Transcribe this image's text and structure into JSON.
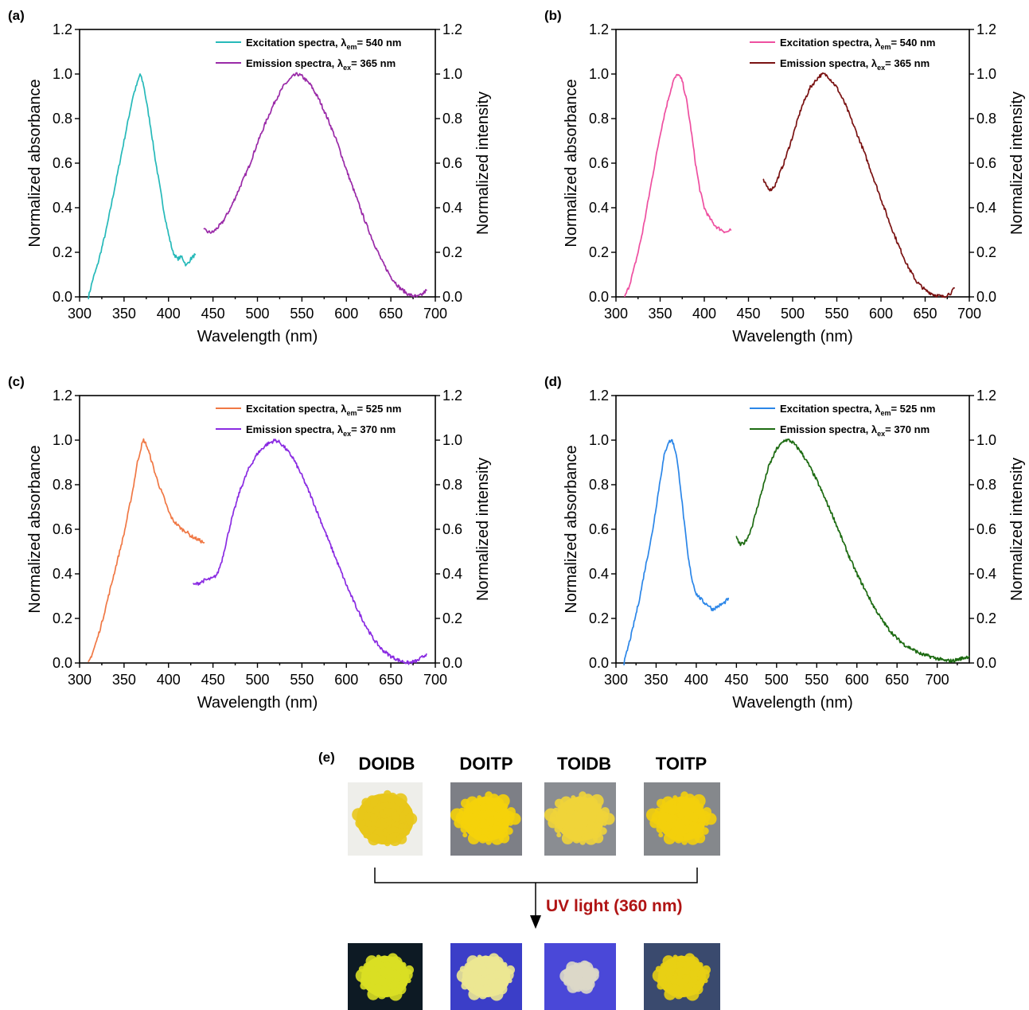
{
  "chart_data": [
    {
      "panel": "(a)",
      "type": "line",
      "xlabel": "Wavelength (nm)",
      "ylabel": "Normalized absorbance",
      "ylabel_right": "Normalized intensity",
      "xlim": [
        300,
        700
      ],
      "ylim": [
        0,
        1.2
      ],
      "xticks": [
        "300",
        "350",
        "400",
        "450",
        "500",
        "550",
        "600",
        "650",
        "700"
      ],
      "yticks": [
        "0.0",
        "0.2",
        "0.4",
        "0.6",
        "0.8",
        "1.0",
        "1.2"
      ],
      "legend_position": "top-right",
      "series": [
        {
          "name": "Excitation spectra, λem= 540 nm",
          "legend_main": "Excitation spectra, λ",
          "legend_sub": "em",
          "legend_tail": "= 540 nm",
          "color": "#26b9b9",
          "x": [
            310,
            315,
            320,
            325,
            330,
            335,
            340,
            345,
            350,
            355,
            360,
            365,
            368,
            372,
            375,
            380,
            385,
            390,
            395,
            400,
            405,
            410,
            415,
            420,
            425,
            430
          ],
          "y": [
            0.0,
            0.08,
            0.14,
            0.22,
            0.3,
            0.4,
            0.5,
            0.6,
            0.7,
            0.8,
            0.9,
            0.96,
            1.0,
            0.95,
            0.88,
            0.76,
            0.62,
            0.5,
            0.38,
            0.28,
            0.2,
            0.17,
            0.18,
            0.14,
            0.17,
            0.19
          ]
        },
        {
          "name": "Emission spectra, λex= 365 nm",
          "legend_main": "Emission spectra, λ",
          "legend_sub": "ex",
          "legend_tail": "= 365 nm",
          "color": "#9a2aa8",
          "x": [
            440,
            445,
            450,
            460,
            470,
            480,
            490,
            500,
            510,
            520,
            530,
            540,
            545,
            550,
            560,
            570,
            580,
            590,
            600,
            610,
            620,
            630,
            640,
            650,
            660,
            670,
            680,
            685,
            690
          ],
          "y": [
            0.3,
            0.29,
            0.29,
            0.33,
            0.4,
            0.49,
            0.58,
            0.69,
            0.79,
            0.88,
            0.95,
            0.99,
            1.0,
            0.99,
            0.95,
            0.88,
            0.79,
            0.69,
            0.57,
            0.46,
            0.35,
            0.25,
            0.16,
            0.09,
            0.04,
            0.01,
            0.0,
            0.01,
            0.03
          ]
        }
      ]
    },
    {
      "panel": "(b)",
      "type": "line",
      "xlabel": "Wavelength (nm)",
      "ylabel": "Normalized absorbance",
      "ylabel_right": "Normalized intensity",
      "xlim": [
        300,
        700
      ],
      "ylim": [
        0,
        1.2
      ],
      "xticks": [
        "300",
        "350",
        "400",
        "450",
        "500",
        "550",
        "600",
        "650",
        "700"
      ],
      "yticks": [
        "0.0",
        "0.2",
        "0.4",
        "0.6",
        "0.8",
        "1.0",
        "1.2"
      ],
      "legend_position": "top-right",
      "series": [
        {
          "name": "Excitation spectra, λem= 540 nm",
          "legend_main": "Excitation spectra, λ",
          "legend_sub": "em",
          "legend_tail": "= 540 nm",
          "color": "#ee4fa0",
          "x": [
            310,
            315,
            320,
            325,
            330,
            335,
            340,
            345,
            350,
            355,
            360,
            365,
            370,
            375,
            380,
            385,
            390,
            395,
            400,
            405,
            410,
            415,
            420,
            425,
            430
          ],
          "y": [
            0.0,
            0.05,
            0.12,
            0.2,
            0.29,
            0.4,
            0.51,
            0.62,
            0.73,
            0.82,
            0.9,
            0.97,
            1.0,
            0.97,
            0.88,
            0.75,
            0.6,
            0.48,
            0.4,
            0.36,
            0.33,
            0.31,
            0.3,
            0.29,
            0.3
          ]
        },
        {
          "name": "Emission spectra, λex= 365 nm",
          "legend_main": "Emission spectra, λ",
          "legend_sub": "ex",
          "legend_tail": "= 365 nm",
          "color": "#7a1212",
          "x": [
            467,
            470,
            475,
            480,
            485,
            490,
            500,
            510,
            520,
            530,
            535,
            540,
            550,
            560,
            570,
            580,
            590,
            600,
            610,
            620,
            630,
            640,
            650,
            660,
            670,
            675,
            680,
            683
          ],
          "y": [
            0.52,
            0.5,
            0.48,
            0.5,
            0.55,
            0.6,
            0.72,
            0.85,
            0.94,
            0.99,
            1.0,
            0.99,
            0.94,
            0.86,
            0.76,
            0.66,
            0.55,
            0.44,
            0.33,
            0.23,
            0.14,
            0.07,
            0.03,
            0.01,
            0.0,
            0.01,
            0.02,
            0.04
          ]
        }
      ]
    },
    {
      "panel": "(c)",
      "type": "line",
      "xlabel": "Wavelength (nm)",
      "ylabel": "Normalized absorbance",
      "ylabel_right": "Normalized intensity",
      "xlim": [
        300,
        700
      ],
      "ylim": [
        0,
        1.2
      ],
      "xticks": [
        "300",
        "350",
        "400",
        "450",
        "500",
        "550",
        "600",
        "650",
        "700"
      ],
      "yticks": [
        "0.0",
        "0.2",
        "0.4",
        "0.6",
        "0.8",
        "1.0",
        "1.2"
      ],
      "legend_position": "top-right",
      "series": [
        {
          "name": "Excitation spectra, λem= 525 nm",
          "legend_main": "Excitation spectra, λ",
          "legend_sub": "em",
          "legend_tail": "= 525 nm",
          "color": "#f07845",
          "x": [
            310,
            315,
            320,
            325,
            330,
            335,
            340,
            345,
            350,
            355,
            360,
            365,
            370,
            372,
            375,
            380,
            385,
            390,
            395,
            400,
            405,
            410,
            415,
            420,
            425,
            430,
            435,
            440
          ],
          "y": [
            0.0,
            0.05,
            0.11,
            0.18,
            0.26,
            0.34,
            0.42,
            0.5,
            0.58,
            0.68,
            0.78,
            0.9,
            0.98,
            1.0,
            0.98,
            0.92,
            0.85,
            0.79,
            0.74,
            0.68,
            0.64,
            0.62,
            0.6,
            0.59,
            0.57,
            0.56,
            0.55,
            0.54
          ]
        },
        {
          "name": "Emission spectra, λex= 370 nm",
          "legend_main": "Emission spectra, λ",
          "legend_sub": "ex",
          "legend_tail": "= 370 nm",
          "color": "#8a2be2",
          "x": [
            428,
            435,
            440,
            450,
            455,
            460,
            470,
            480,
            490,
            500,
            510,
            520,
            525,
            530,
            540,
            550,
            560,
            570,
            580,
            590,
            600,
            610,
            620,
            630,
            640,
            650,
            660,
            670,
            680,
            690
          ],
          "y": [
            0.35,
            0.36,
            0.37,
            0.38,
            0.4,
            0.46,
            0.63,
            0.77,
            0.87,
            0.94,
            0.98,
            1.0,
            0.99,
            0.97,
            0.92,
            0.84,
            0.75,
            0.65,
            0.55,
            0.45,
            0.35,
            0.26,
            0.18,
            0.11,
            0.06,
            0.03,
            0.01,
            0.0,
            0.01,
            0.04
          ]
        }
      ]
    },
    {
      "panel": "(d)",
      "type": "line",
      "xlabel": "Wavelength (nm)",
      "ylabel": "Normalized absorbance",
      "ylabel_right": "Normalized intensity",
      "xlim": [
        300,
        740
      ],
      "ylim": [
        0,
        1.2
      ],
      "xticks": [
        "300",
        "350",
        "400",
        "450",
        "500",
        "550",
        "600",
        "650",
        "700"
      ],
      "yticks": [
        "0.0",
        "0.2",
        "0.4",
        "0.6",
        "0.8",
        "1.0",
        "1.2"
      ],
      "legend_position": "top-right",
      "series": [
        {
          "name": "Excitation spectra, λem= 525 nm",
          "legend_main": "Excitation spectra, λ",
          "legend_sub": "em",
          "legend_tail": "= 525 nm",
          "color": "#2b86e8",
          "x": [
            310,
            315,
            320,
            325,
            330,
            335,
            340,
            345,
            350,
            355,
            360,
            365,
            370,
            375,
            380,
            385,
            390,
            395,
            400,
            405,
            410,
            415,
            420,
            425,
            430,
            435,
            440
          ],
          "y": [
            0.0,
            0.07,
            0.14,
            0.22,
            0.3,
            0.4,
            0.49,
            0.58,
            0.7,
            0.82,
            0.93,
            0.99,
            1.0,
            0.94,
            0.8,
            0.63,
            0.47,
            0.37,
            0.31,
            0.29,
            0.27,
            0.26,
            0.24,
            0.25,
            0.26,
            0.27,
            0.29
          ]
        },
        {
          "name": "Emission spectra, λex= 370 nm",
          "legend_main": "Emission spectra, λ",
          "legend_sub": "ex",
          "legend_tail": "= 370 nm",
          "color": "#1d6b12",
          "x": [
            450,
            455,
            460,
            465,
            470,
            480,
            490,
            500,
            510,
            515,
            520,
            530,
            540,
            550,
            560,
            570,
            580,
            590,
            600,
            610,
            620,
            630,
            640,
            650,
            660,
            670,
            680,
            690,
            700,
            710,
            720,
            730,
            740
          ],
          "y": [
            0.56,
            0.53,
            0.54,
            0.57,
            0.62,
            0.75,
            0.88,
            0.96,
            1.0,
            1.0,
            0.99,
            0.95,
            0.89,
            0.82,
            0.74,
            0.66,
            0.57,
            0.48,
            0.4,
            0.33,
            0.26,
            0.2,
            0.15,
            0.11,
            0.08,
            0.06,
            0.04,
            0.03,
            0.02,
            0.01,
            0.01,
            0.02,
            0.03
          ]
        }
      ]
    }
  ],
  "panel_e": {
    "label": "(e)",
    "samples": [
      "DOIDB",
      "DOITP",
      "TOIDB",
      "TOITP"
    ],
    "arrow_label": "UV light (360 nm)",
    "photo_colors_daylight": [
      "#e8c61a",
      "#f5d20a",
      "#efd43a",
      "#f3cf0c"
    ],
    "photo_bg_daylight": [
      "#eeeeea",
      "#7d7f86",
      "#8a8d92",
      "#85888c"
    ],
    "photo_colors_uv": [
      "#d9df24",
      "#ece792",
      "#dcd8c8",
      "#e8cf14"
    ],
    "photo_bg_uv": [
      "#0d1a24",
      "#3b3ec8",
      "#4a48d8",
      "#3a4a6e"
    ]
  }
}
